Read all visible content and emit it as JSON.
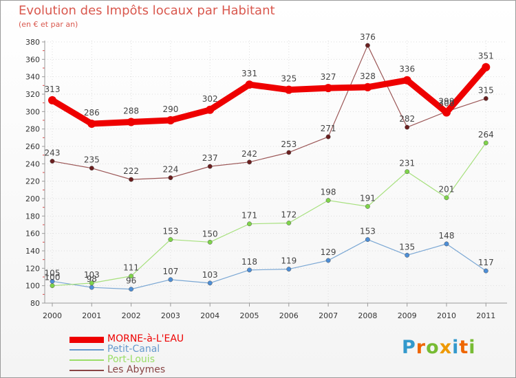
{
  "chart_data": {
    "type": "line",
    "title": "Evolution des Impôts locaux par Habitant",
    "subtitle": "(en € et par an)",
    "xlabel": "",
    "ylabel": "",
    "categories": [
      "2000",
      "2001",
      "2002",
      "2003",
      "2004",
      "2005",
      "2006",
      "2007",
      "2008",
      "2009",
      "2010",
      "2011"
    ],
    "ylim": [
      80,
      380
    ],
    "yticks": [
      80,
      100,
      120,
      140,
      160,
      180,
      200,
      220,
      240,
      260,
      280,
      300,
      320,
      340,
      360,
      380
    ],
    "grid": true,
    "legend_position": "bottom-left",
    "series": [
      {
        "name": "MORNE-à-L'EAU",
        "color": "#ee0000",
        "values": [
          313,
          286,
          288,
          290,
          302,
          331,
          325,
          327,
          328,
          336,
          299,
          351
        ]
      },
      {
        "name": "Petit-Canal",
        "color": "#6699cc",
        "values": [
          105,
          98,
          96,
          107,
          103,
          118,
          119,
          129,
          153,
          135,
          148,
          117
        ]
      },
      {
        "name": "Port-Louis",
        "color": "#99dd66",
        "values": [
          100,
          103,
          111,
          153,
          150,
          171,
          172,
          198,
          191,
          231,
          201,
          264
        ]
      },
      {
        "name": "Les Abymes",
        "color": "#884444",
        "values": [
          243,
          235,
          222,
          224,
          237,
          242,
          253,
          271,
          376,
          282,
          300,
          315
        ]
      }
    ]
  },
  "brand": {
    "letters": [
      "P",
      "r",
      "o",
      "x",
      "i",
      "t",
      "i"
    ],
    "colors": [
      "#3399cc",
      "#ee6600",
      "#77bb33",
      "#ee9900",
      "#3399cc",
      "#ee6600",
      "#77bb33"
    ]
  }
}
